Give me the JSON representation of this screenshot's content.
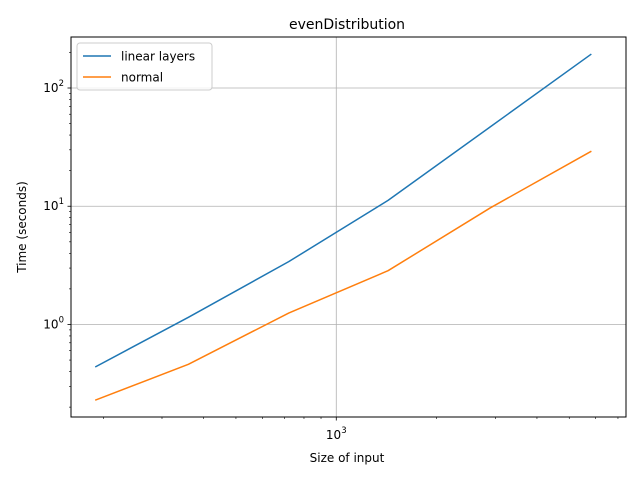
{
  "chart_data": {
    "type": "line",
    "title": "evenDistribution",
    "xlabel": "Size of input",
    "ylabel": "Time (seconds)",
    "xscale": "log",
    "yscale": "log",
    "xlim": [
      160,
      7400
    ],
    "ylim": [
      0.165,
      270
    ],
    "x_major_ticks": [
      {
        "value": 1000,
        "base": "10",
        "exp": "3"
      }
    ],
    "y_major_ticks": [
      {
        "value": 1,
        "base": "10",
        "exp": "0"
      },
      {
        "value": 10,
        "base": "10",
        "exp": "1"
      },
      {
        "value": 100,
        "base": "10",
        "exp": "2"
      }
    ],
    "grid": true,
    "legend_position": "upper-left",
    "series": [
      {
        "name": "linear layers",
        "color": "#1f77b4",
        "x": [
          190,
          360,
          720,
          1430,
          2900,
          5800
        ],
        "values": [
          0.44,
          1.15,
          3.4,
          11.2,
          47,
          192
        ]
      },
      {
        "name": "normal",
        "color": "#ff7f0e",
        "x": [
          190,
          360,
          720,
          1430,
          2900,
          5800
        ],
        "values": [
          0.23,
          0.46,
          1.25,
          2.85,
          9.7,
          29
        ]
      }
    ]
  }
}
